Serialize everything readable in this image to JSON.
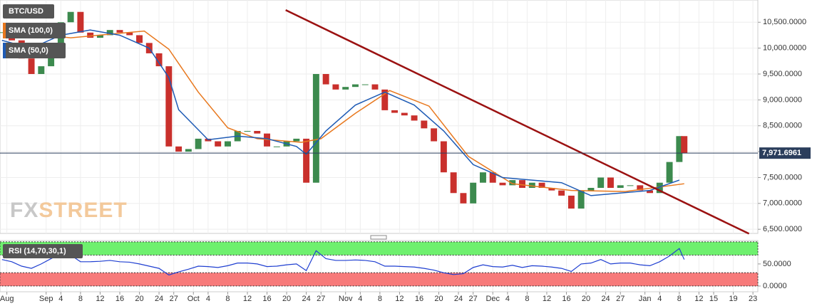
{
  "chart_data": [
    {
      "type": "candlestick",
      "title": "BTC/USD",
      "x": [
        -9,
        -7,
        -5,
        -3,
        -1,
        1,
        3,
        5,
        7,
        9,
        11,
        13,
        15,
        17,
        19,
        21,
        23,
        25,
        27,
        29,
        31,
        33,
        35,
        37,
        39,
        41,
        43,
        45,
        47,
        49,
        51,
        53,
        55,
        57,
        59,
        61,
        63,
        65,
        67,
        69,
        71,
        73,
        75,
        77,
        79,
        81,
        83,
        85,
        87,
        89,
        91,
        93,
        95,
        97,
        99,
        101,
        103,
        105,
        107,
        109,
        111,
        113,
        115,
        117,
        119,
        121,
        123,
        125,
        127,
        129,
        130
      ],
      "values": [
        10300,
        10150,
        9800,
        9500,
        9650,
        10000,
        10500,
        10700,
        10300,
        10200,
        10250,
        10350,
        10300,
        10250,
        10100,
        9900,
        9650,
        8100,
        8000,
        8050,
        8250,
        8200,
        8100,
        8200,
        8400,
        8400,
        8350,
        8100,
        8100,
        8200,
        8250,
        7400,
        9500,
        9300,
        9200,
        9250,
        9300,
        9300,
        9200,
        8800,
        8750,
        8700,
        8600,
        8450,
        8200,
        7600,
        7200,
        7000,
        7400,
        7600,
        7400,
        7350,
        7450,
        7300,
        7400,
        7300,
        7250,
        7150,
        6900,
        7250,
        7300,
        7500,
        7300,
        7350,
        7350,
        7250,
        7200,
        7400,
        7800,
        8300,
        7970
      ],
      "color_up": "#3c8a4e",
      "color_down": "#c9302c",
      "overlays": [
        {
          "name": "SMA (100,0)",
          "color": "#e8781e",
          "x": [
            -8.8,
            5,
            20,
            25,
            31,
            37,
            43,
            52,
            56,
            63,
            70,
            78,
            86,
            95,
            107,
            118,
            130
          ],
          "values": [
            10330,
            10200,
            10330,
            9980,
            9150,
            8460,
            8250,
            8180,
            8250,
            8740,
            9180,
            8880,
            7910,
            7380,
            7250,
            7230,
            7380
          ]
        },
        {
          "name": "SMA (50,0)",
          "color": "#1e5bb5",
          "x": [
            -9,
            -3,
            3,
            9,
            15,
            21,
            25,
            27,
            33,
            39,
            45,
            51,
            53,
            57,
            63,
            69,
            75,
            81,
            87,
            93,
            99,
            105,
            111,
            117,
            123,
            129
          ],
          "values": [
            10150,
            10000,
            10250,
            10350,
            10250,
            10000,
            9430,
            8810,
            8230,
            8300,
            8250,
            8100,
            7950,
            8400,
            8900,
            9150,
            8900,
            8400,
            7750,
            7500,
            7450,
            7400,
            7150,
            7200,
            7250,
            7450
          ]
        }
      ],
      "trendline": {
        "color": "#9b1111",
        "x": [
          48.8,
          143.2
        ],
        "values": [
          10735,
          6414
        ]
      },
      "last_price": {
        "value": 7971.6961,
        "label": "7,971.6961",
        "color": "#2b3e5c"
      },
      "xlim": [
        -9.4,
        145
      ],
      "ylim": [
        6420,
        10930
      ],
      "yticks": [
        {
          "value": 6500,
          "label": "6,500.0000"
        },
        {
          "value": 7000,
          "label": "7,000.0000"
        },
        {
          "value": 7500,
          "label": "7,500.0000"
        },
        {
          "value": 8000,
          "label": "8,000.0000"
        },
        {
          "value": 8500,
          "label": "8,500.0000"
        },
        {
          "value": 9000,
          "label": "9,000.0000"
        },
        {
          "value": 9500,
          "label": "9,500.0000"
        },
        {
          "value": 10000,
          "label": "10,000.0000"
        },
        {
          "value": 10500,
          "label": "10,500.0000"
        }
      ],
      "xticks": [
        {
          "value": -8,
          "label": "Aug"
        },
        {
          "value": 0,
          "label": "Sep"
        },
        {
          "value": 3,
          "label": "4"
        },
        {
          "value": 7,
          "label": "8"
        },
        {
          "value": 11,
          "label": "12"
        },
        {
          "value": 15,
          "label": "16"
        },
        {
          "value": 19,
          "label": "20"
        },
        {
          "value": 23,
          "label": "24"
        },
        {
          "value": 26,
          "label": "27"
        },
        {
          "value": 30,
          "label": "Oct"
        },
        {
          "value": 33,
          "label": "4"
        },
        {
          "value": 37,
          "label": "8"
        },
        {
          "value": 41,
          "label": "12"
        },
        {
          "value": 45,
          "label": "16"
        },
        {
          "value": 49,
          "label": "20"
        },
        {
          "value": 53,
          "label": "24"
        },
        {
          "value": 56,
          "label": "27"
        },
        {
          "value": 61,
          "label": "Nov"
        },
        {
          "value": 64,
          "label": "4"
        },
        {
          "value": 68,
          "label": "8"
        },
        {
          "value": 72,
          "label": "12"
        },
        {
          "value": 76,
          "label": "16"
        },
        {
          "value": 80,
          "label": "20"
        },
        {
          "value": 84,
          "label": "24"
        },
        {
          "value": 87,
          "label": "27"
        },
        {
          "value": 91,
          "label": "Dec"
        },
        {
          "value": 94,
          "label": "4"
        },
        {
          "value": 98,
          "label": "8"
        },
        {
          "value": 102,
          "label": "12"
        },
        {
          "value": 106,
          "label": "16"
        },
        {
          "value": 110,
          "label": "20"
        },
        {
          "value": 114,
          "label": "24"
        },
        {
          "value": 117,
          "label": "27"
        },
        {
          "value": 122,
          "label": "Jan"
        },
        {
          "value": 125,
          "label": "4"
        },
        {
          "value": 129,
          "label": "8"
        },
        {
          "value": 133,
          "label": "12"
        },
        {
          "value": 136,
          "label": "15"
        },
        {
          "value": 140,
          "label": "19"
        },
        {
          "value": 144,
          "label": "23"
        }
      ],
      "grid": true,
      "watermark": [
        "FX",
        "STREET"
      ]
    },
    {
      "type": "line",
      "title": "RSI (14,70,30,1)",
      "color": "#1f3fd1",
      "x": [
        -9,
        -7,
        -5,
        -3,
        -1,
        1,
        3,
        5,
        7,
        9,
        11,
        13,
        15,
        17,
        19,
        21,
        23,
        25,
        27,
        29,
        31,
        33,
        35,
        37,
        39,
        41,
        43,
        45,
        47,
        49,
        51,
        53,
        55,
        57,
        59,
        61,
        63,
        65,
        67,
        69,
        71,
        73,
        75,
        77,
        79,
        81,
        83,
        85,
        87,
        89,
        91,
        93,
        95,
        97,
        99,
        101,
        103,
        105,
        107,
        109,
        111,
        113,
        115,
        117,
        119,
        121,
        123,
        125,
        127,
        129,
        130
      ],
      "values": [
        60,
        55,
        45,
        40,
        50,
        62,
        72,
        70,
        55,
        55,
        56,
        58,
        55,
        54,
        50,
        45,
        40,
        25,
        32,
        38,
        45,
        44,
        42,
        46,
        52,
        52,
        50,
        44,
        45,
        48,
        50,
        35,
        80,
        62,
        58,
        58,
        59,
        58,
        55,
        45,
        45,
        44,
        43,
        40,
        36,
        30,
        26,
        28,
        42,
        48,
        44,
        43,
        47,
        42,
        46,
        45,
        43,
        40,
        33,
        50,
        52,
        60,
        50,
        52,
        52,
        48,
        46,
        55,
        68,
        85,
        60
      ],
      "bands": [
        {
          "from": 70,
          "to": 100,
          "color": "#6ef06e"
        },
        {
          "from": 0,
          "to": 30,
          "color": "#f77a7a"
        }
      ],
      "ylim": [
        -13,
        103
      ],
      "yticks": [
        {
          "value": 0,
          "label": "0.0000"
        },
        {
          "value": 50,
          "label": "50.0000"
        }
      ]
    }
  ]
}
